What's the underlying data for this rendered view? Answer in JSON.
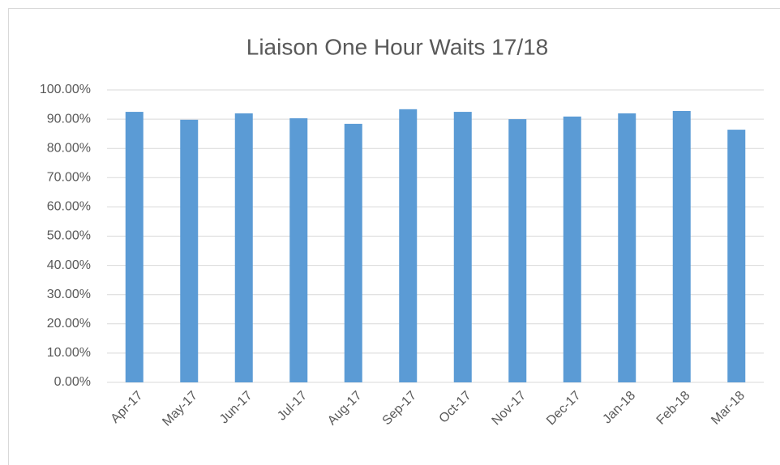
{
  "chart_data": {
    "type": "bar",
    "title": "Liaison One Hour Waits 17/18",
    "categories": [
      "Apr-17",
      "May-17",
      "Jun-17",
      "Jul-17",
      "Aug-17",
      "Sep-17",
      "Oct-17",
      "Nov-17",
      "Dec-17",
      "Jan-18",
      "Feb-18",
      "Mar-18"
    ],
    "values": [
      92.5,
      89.8,
      92,
      90.3,
      88.4,
      93.4,
      92.5,
      90,
      90.9,
      92,
      92.8,
      86.4
    ],
    "color": "#5b9bd5",
    "ylim": [
      0,
      100
    ],
    "yticks": [
      {
        "value": 0,
        "label": "0.00%"
      },
      {
        "value": 10,
        "label": "10.00%"
      },
      {
        "value": 20,
        "label": "20.00%"
      },
      {
        "value": 30,
        "label": "30.00%"
      },
      {
        "value": 40,
        "label": "40.00%"
      },
      {
        "value": 50,
        "label": "50.00%"
      },
      {
        "value": 60,
        "label": "60.00%"
      },
      {
        "value": 70,
        "label": "70.00%"
      },
      {
        "value": 80,
        "label": "80.00%"
      },
      {
        "value": 90,
        "label": "90.00%"
      },
      {
        "value": 100,
        "label": "100.00%"
      }
    ],
    "grid": true
  }
}
